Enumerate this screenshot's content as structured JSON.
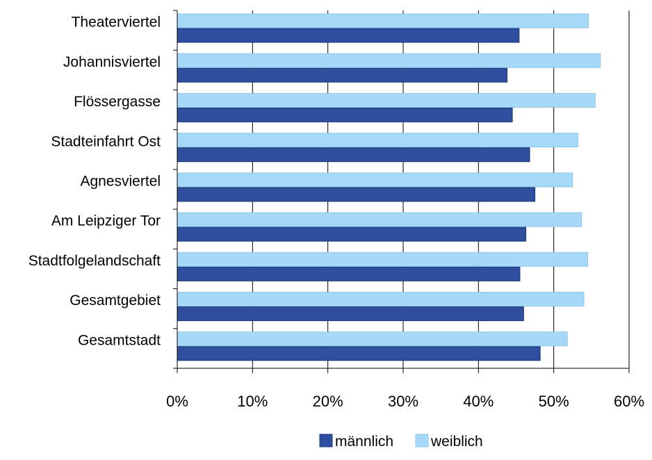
{
  "chart_data": {
    "type": "bar",
    "orientation": "horizontal",
    "categories": [
      "Theaterviertel",
      "Johannisviertel",
      "Flössergasse",
      "Stadteinfahrt Ost",
      "Agnesviertel",
      "Am Leipziger Tor",
      "Stadtfolgelandschaft",
      "Gesamtgebiet",
      "Gesamtstadt"
    ],
    "series": [
      {
        "name": "männlich",
        "color": "#2e4f9e",
        "values": [
          45.4,
          43.8,
          44.5,
          46.8,
          47.5,
          46.3,
          45.5,
          46.0,
          48.2
        ]
      },
      {
        "name": "weiblich",
        "color": "#a6d8f7",
        "values": [
          54.6,
          56.2,
          55.5,
          53.2,
          52.5,
          53.7,
          54.5,
          54.0,
          51.8
        ]
      }
    ],
    "xlim": [
      0,
      60
    ],
    "xticks": [
      "0%",
      "10%",
      "20%",
      "30%",
      "40%",
      "50%",
      "60%"
    ],
    "grid": true,
    "legend_position": "bottom"
  }
}
